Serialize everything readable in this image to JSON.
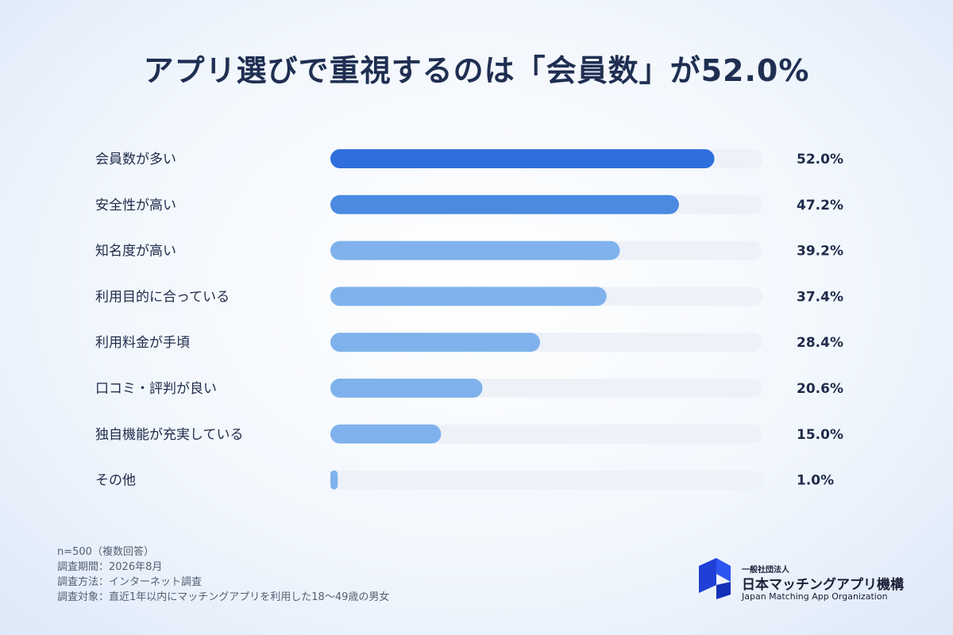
{
  "title": "アプリ選びで重視するのは「会員数」が52.0%",
  "chart_data": {
    "type": "bar",
    "orientation": "horizontal",
    "categories": [
      "会員数が多い",
      "安全性が高い",
      "知名度が高い",
      "利用目的に合っている",
      "利用料金が手頃",
      "口コミ・評判が良い",
      "独自機能が充実している",
      "その他"
    ],
    "values": [
      52.0,
      47.2,
      39.2,
      37.4,
      28.4,
      20.6,
      15.0,
      1.0
    ],
    "value_labels": [
      "52.0%",
      "47.2%",
      "39.2%",
      "37.4%",
      "28.4%",
      "20.6%",
      "15.0%",
      "1.0%"
    ],
    "xlim": [
      0,
      58.5
    ],
    "grid": false,
    "colors": {
      "top1": "#2e6fdc",
      "top2": "#4a8ae0",
      "rest": "#7fb2ec",
      "track": "#eef2f8"
    }
  },
  "notes": {
    "sample": "n=500（複数回答）",
    "period": "調査期間：2026年8月",
    "method": "調査方法：インターネット調査",
    "target": "調査対象：直近1年以内にマッチングアプリを利用した18〜49歳の男女"
  },
  "logo": {
    "sub": "一般社団法人",
    "name": "日本マッチングアプリ機構",
    "english": "Japan Matching App Organization",
    "icon": "organization-logo-icon",
    "color": "#1f3fd6"
  }
}
